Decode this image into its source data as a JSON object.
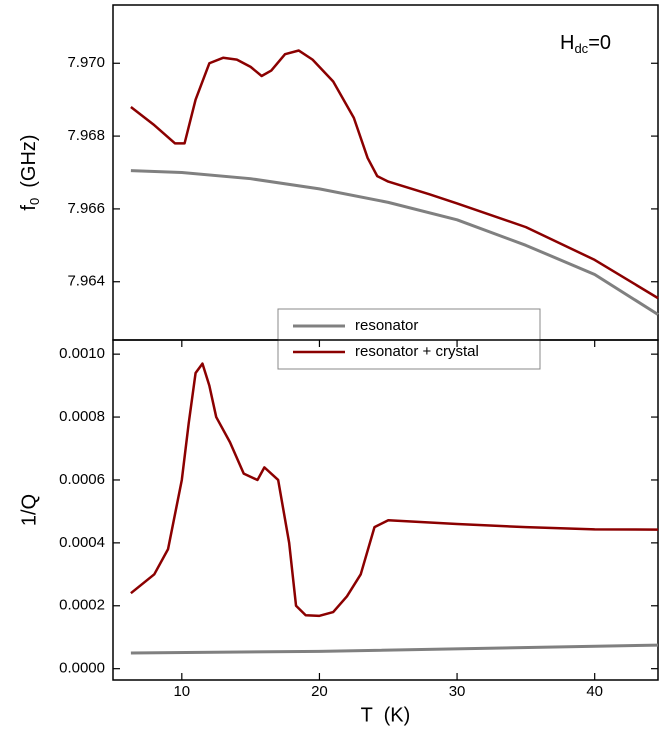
{
  "chart_data": [
    {
      "type": "line",
      "ylabel": {
        "main": "f",
        "sub": "0",
        "unit": "(GHz)"
      },
      "annotation": {
        "main": "H",
        "sub": "dc",
        "suffix": "=0"
      },
      "xlim": [
        5,
        44.6
      ],
      "ylim": [
        7.9624,
        7.9716
      ],
      "yticks": [
        {
          "value": 7.964,
          "label": "7.964"
        },
        {
          "value": 7.966,
          "label": "7.966"
        },
        {
          "value": 7.968,
          "label": "7.968"
        },
        {
          "value": 7.97,
          "label": "7.970"
        }
      ],
      "legend": "bottom center",
      "series": [
        {
          "name": "resonator",
          "color": "#808080",
          "x": [
            6.3,
            10,
            15,
            20,
            25,
            30,
            35,
            40,
            44.6
          ],
          "values": [
            7.96705,
            7.967,
            7.96683,
            7.96655,
            7.96618,
            7.9657,
            7.965,
            7.9642,
            7.9631
          ]
        },
        {
          "name": "resonator + crystal",
          "color": "#8b0000",
          "x": [
            6.3,
            8,
            9.5,
            10.2,
            11,
            12,
            13,
            14,
            15,
            15.8,
            16.5,
            17.5,
            18.5,
            19.5,
            21,
            22.5,
            23.5,
            24.2,
            25,
            28,
            30,
            35,
            40,
            44.6
          ],
          "values": [
            7.9688,
            7.9683,
            7.9678,
            7.9678,
            7.969,
            7.97,
            7.97015,
            7.9701,
            7.9699,
            7.96965,
            7.9698,
            7.97025,
            7.97035,
            7.9701,
            7.9695,
            7.9685,
            7.9674,
            7.9669,
            7.96675,
            7.9664,
            7.96615,
            7.9655,
            7.9646,
            7.96355
          ]
        }
      ]
    },
    {
      "type": "line",
      "xlabel": "T  (K)",
      "ylabel": "1/Q",
      "xlim": [
        5,
        44.6
      ],
      "ylim": [
        -3.6e-05,
        0.001045
      ],
      "xticks": [
        10,
        20,
        30,
        40
      ],
      "yticks": [
        {
          "value": 0,
          "label": "0.0000"
        },
        {
          "value": 0.0002,
          "label": "0.0002"
        },
        {
          "value": 0.0004,
          "label": "0.0004"
        },
        {
          "value": 0.0006,
          "label": "0.0006"
        },
        {
          "value": 0.0008,
          "label": "0.0008"
        },
        {
          "value": 0.001,
          "label": "0.0010"
        }
      ],
      "series": [
        {
          "color": "#808080",
          "x": [
            6.3,
            20,
            44.6
          ],
          "values": [
            5e-05,
            5.5e-05,
            7.5e-05
          ]
        },
        {
          "color": "#8b0000",
          "x": [
            6.3,
            8,
            9,
            10,
            10.5,
            11,
            11.5,
            12,
            12.5,
            13.5,
            14.5,
            15.5,
            16,
            17,
            17.8,
            18.3,
            19,
            20,
            21,
            22,
            23,
            24,
            25,
            30,
            35,
            40,
            44.6
          ],
          "values": [
            0.00024,
            0.0003,
            0.00038,
            0.0006,
            0.00078,
            0.00094,
            0.00097,
            0.0009,
            0.0008,
            0.00072,
            0.00062,
            0.0006,
            0.00064,
            0.0006,
            0.0004,
            0.0002,
            0.00017,
            0.000168,
            0.00018,
            0.00023,
            0.0003,
            0.00045,
            0.000472,
            0.00046,
            0.00045,
            0.000443,
            0.000442
          ]
        }
      ]
    }
  ]
}
